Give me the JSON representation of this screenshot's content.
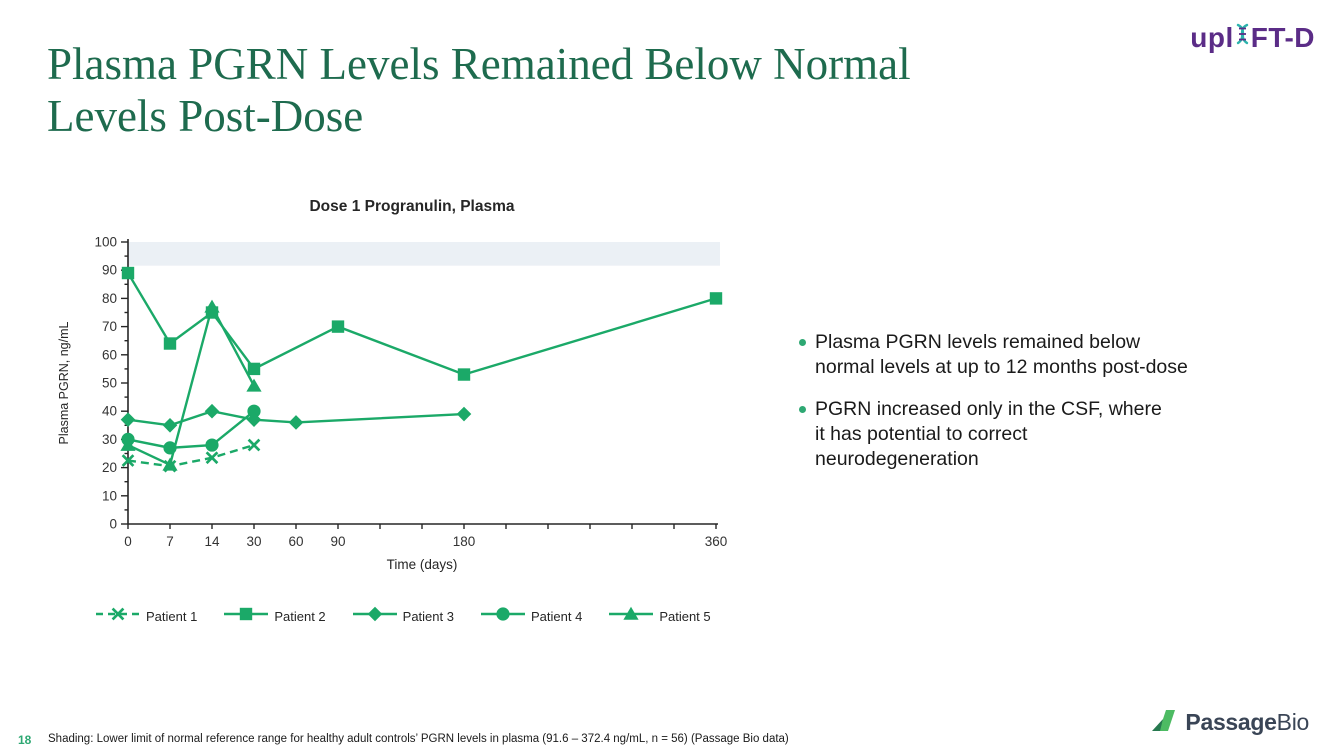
{
  "header": {
    "title_lines": [
      "Plasma PGRN Levels Remained Below Normal",
      "Levels Post-Dose"
    ],
    "title_color": "#1E6B4E",
    "logo": {
      "prefix": "upl",
      "suffix": "FT-D",
      "purple": "#5B2C87",
      "teal": "#2BB3AC",
      "helix_icon": "dna-helix-icon"
    }
  },
  "chart_data": {
    "type": "line",
    "title": "Dose 1 Progranulin, Plasma",
    "xlabel": "Time (days)",
    "ylabel": "Plasma PGRN, ng/mL",
    "ylim": [
      0,
      100
    ],
    "y_major_step": 10,
    "y_minor_step": 5,
    "grid": false,
    "legend_position": "bottom",
    "x_categories": [
      0,
      7,
      14,
      30,
      60,
      90,
      120,
      150,
      180,
      210,
      240,
      270,
      300,
      330,
      360
    ],
    "x_labeled_ticks": [
      0,
      7,
      14,
      30,
      60,
      90,
      180,
      360
    ],
    "shaded_band": {
      "from": 91.6,
      "to": 100,
      "color": "#EBF0F5"
    },
    "series_color": "#1BA968",
    "draw_order": [
      4,
      0,
      3,
      2,
      1
    ],
    "series": [
      {
        "name": "Patient 1",
        "marker": "x",
        "dashed": true,
        "points": [
          [
            0,
            22.5
          ],
          [
            7,
            20.5
          ],
          [
            14,
            23.5
          ],
          [
            30,
            28
          ]
        ]
      },
      {
        "name": "Patient 2",
        "marker": "square",
        "dashed": false,
        "points": [
          [
            0,
            89
          ],
          [
            7,
            64
          ],
          [
            14,
            75
          ],
          [
            30,
            55
          ],
          [
            90,
            70
          ],
          [
            180,
            53
          ],
          [
            360,
            80
          ]
        ]
      },
      {
        "name": "Patient 3",
        "marker": "diamond",
        "dashed": false,
        "points": [
          [
            0,
            37
          ],
          [
            7,
            35
          ],
          [
            14,
            40
          ],
          [
            30,
            37
          ],
          [
            60,
            36
          ],
          [
            180,
            39
          ]
        ]
      },
      {
        "name": "Patient 4",
        "marker": "circle",
        "dashed": false,
        "points": [
          [
            0,
            30
          ],
          [
            7,
            27
          ],
          [
            14,
            28
          ],
          [
            30,
            40
          ]
        ]
      },
      {
        "name": "Patient 5",
        "marker": "triangle",
        "dashed": false,
        "points": [
          [
            0,
            28
          ],
          [
            7,
            21
          ],
          [
            14,
            77
          ],
          [
            30,
            49
          ]
        ]
      }
    ]
  },
  "bullets": {
    "items": [
      {
        "text": "Plasma PGRN levels remained below\nnormal levels at up to 12 months post-dose"
      },
      {
        "text": "PGRN increased only in the CSF, where\nit has potential to correct\nneurodegeneration"
      }
    ],
    "dot_color": "#2EA873"
  },
  "footer": {
    "page_number": "18",
    "note": "Shading: Lower limit of normal reference range for healthy adult controls’ PGRN levels in plasma (91.6 – 372.4 ng/mL, n = 56) (Passage Bio data)",
    "logo": {
      "bold": "Passage",
      "light": "Bio",
      "icon": "passage-bio-flag-icon",
      "green_light": "#4DBB63",
      "green_dark": "#27794F",
      "navy": "#3A4556"
    }
  }
}
